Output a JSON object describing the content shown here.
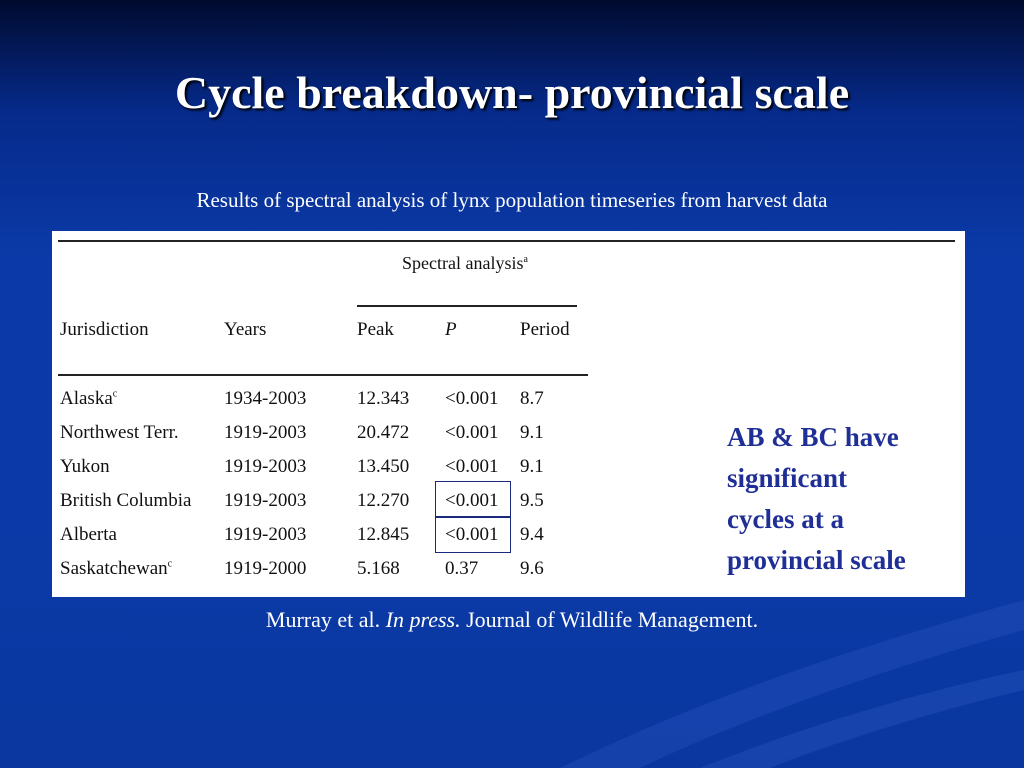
{
  "slide": {
    "title": "Cycle breakdown- provincial scale",
    "subtitle": "Results of spectral analysis of lynx population timeseries from harvest data"
  },
  "table": {
    "group_header": "Spectral analysis",
    "group_header_sup": "a",
    "columns": [
      "Jurisdiction",
      "Years",
      "Peak",
      "P",
      "Period"
    ],
    "rows": [
      {
        "jurisdiction": "Alaska",
        "sup": "c",
        "years": "1934-2003",
        "peak": "12.343",
        "p": "<0.001",
        "period": "8.7"
      },
      {
        "jurisdiction": "Northwest Terr.",
        "sup": "",
        "years": "1919-2003",
        "peak": "20.472",
        "p": "<0.001",
        "period": "9.1"
      },
      {
        "jurisdiction": "Yukon",
        "sup": "",
        "years": "1919-2003",
        "peak": "13.450",
        "p": "<0.001",
        "period": "9.1"
      },
      {
        "jurisdiction": "British Columbia",
        "sup": "",
        "years": "1919-2003",
        "peak": "12.270",
        "p": "<0.001",
        "period": "9.5"
      },
      {
        "jurisdiction": "Alberta",
        "sup": "",
        "years": "1919-2003",
        "peak": "12.845",
        "p": "<0.001",
        "period": "9.4"
      },
      {
        "jurisdiction": "Saskatchewan",
        "sup": "c",
        "years": "1919-2000",
        "peak": "5.168",
        "p": "0.37",
        "period": "9.6"
      }
    ]
  },
  "callout": {
    "lines": [
      "AB & BC have",
      "significant",
      "cycles at a",
      "provincial scale"
    ],
    "arrow_icon": "right-arrow-icon"
  },
  "citation": {
    "authors": "Murray et al.",
    "status": "In press.",
    "journal": "Journal of Wildlife Management."
  },
  "colors": {
    "background": "#0b3aa8",
    "callout_text": "#1f2f96",
    "box_outline": "#1a2a7a"
  }
}
